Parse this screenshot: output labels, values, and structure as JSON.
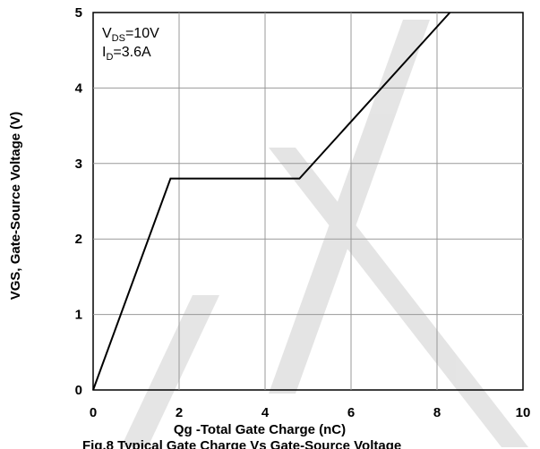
{
  "chart_data": {
    "type": "line",
    "title": "",
    "xlabel": "Qg -Total Gate Charge (nC)",
    "ylabel": "VGS, Gate-Source Voltage (V)",
    "xlim": [
      0,
      10
    ],
    "ylim": [
      0,
      5
    ],
    "x_ticks": [
      "0",
      "2",
      "4",
      "6",
      "8",
      "10"
    ],
    "y_ticks": [
      "0",
      "1",
      "2",
      "3",
      "4",
      "5"
    ],
    "grid": true,
    "series": [
      {
        "x": [
          0,
          1.8,
          4.8,
          8.3
        ],
        "y": [
          0,
          2.8,
          2.8,
          5.0
        ],
        "color": "#000000"
      }
    ],
    "annotations": {
      "line1": {
        "prefix": "V",
        "sub": "DS",
        "suffix": "=10V"
      },
      "line2": {
        "prefix": "I",
        "sub": "D",
        "suffix": "=3.6A"
      }
    },
    "caption_partial": "Fig.8 Typical Gate Charge Vs Gate-Source Voltage"
  }
}
